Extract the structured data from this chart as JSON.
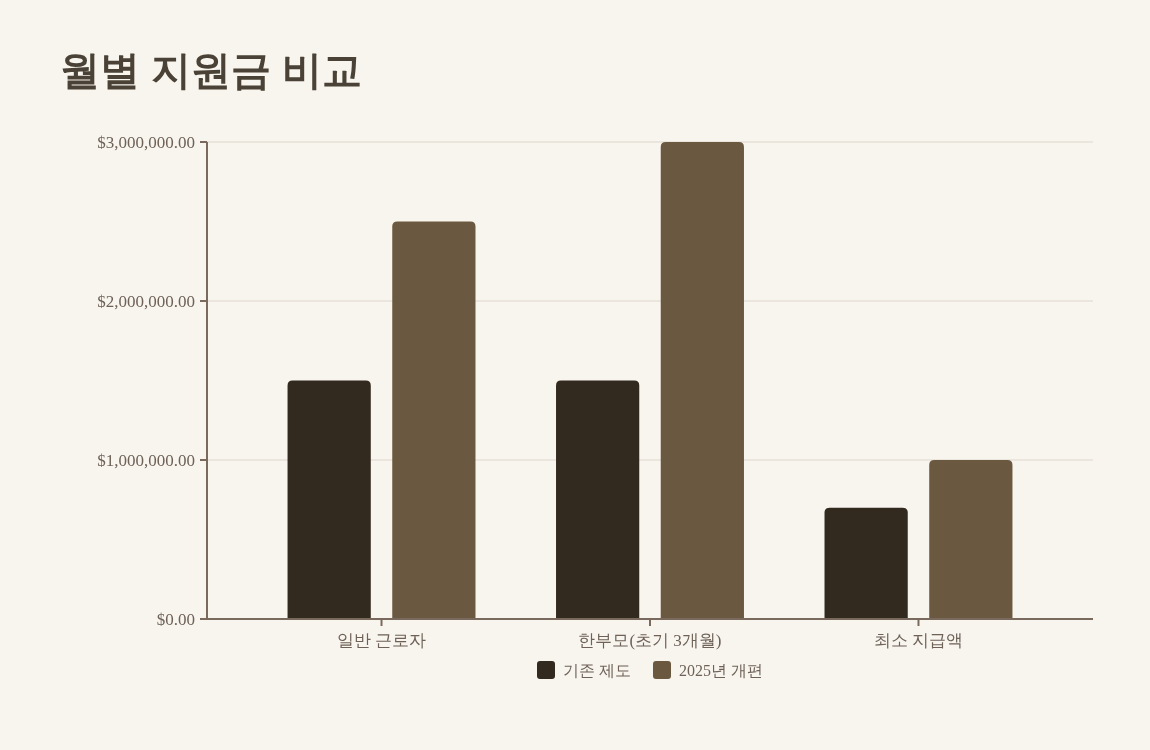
{
  "chart_data": {
    "type": "bar",
    "title": "월별 지원금 비교",
    "categories": [
      "일반 근로자",
      "한부모(초기 3개월)",
      "최소 지급액"
    ],
    "series": [
      {
        "name": "기존 제도",
        "color": "#32291f",
        "values": [
          1500000,
          1500000,
          700000
        ]
      },
      {
        "name": "2025년 개편",
        "color": "#6b5840",
        "values": [
          2500000,
          3000000,
          1000000
        ]
      }
    ],
    "ylim": [
      0,
      3000000
    ],
    "yticks": [
      {
        "value": 0,
        "label": "$0.00"
      },
      {
        "value": 1000000,
        "label": "$1,000,000.00"
      },
      {
        "value": 2000000,
        "label": "$2,000,000.00"
      },
      {
        "value": 3000000,
        "label": "$3,000,000.00"
      }
    ],
    "grid": "y",
    "legend": "bottom"
  }
}
